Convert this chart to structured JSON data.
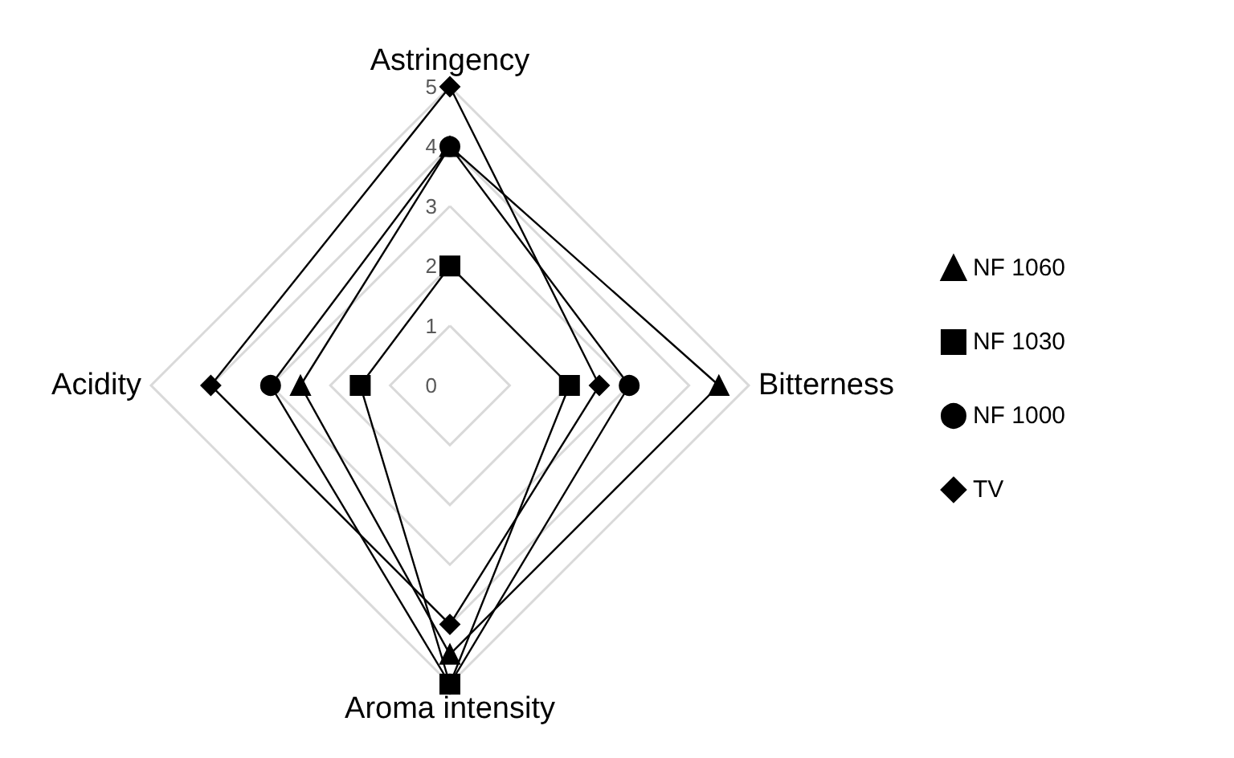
{
  "chart_data": {
    "type": "radar",
    "categories": [
      "Astringency",
      "Bitterness",
      "Aroma intensity",
      "Acidity"
    ],
    "ylim": [
      0,
      5
    ],
    "yticks": [
      0,
      1,
      2,
      3,
      4,
      5
    ],
    "grid": true,
    "legend": "right",
    "line_style": "solid",
    "series": [
      {
        "name": "NF 1060",
        "color": "#000000",
        "marker": "triangle",
        "values": [
          4,
          4.5,
          4.5,
          2.5
        ]
      },
      {
        "name": "NF 1030",
        "color": "#000000",
        "marker": "square",
        "values": [
          2,
          2,
          5,
          1.5
        ]
      },
      {
        "name": "NF 1000",
        "color": "#000000",
        "marker": "circle",
        "values": [
          4,
          3,
          5,
          3
        ]
      },
      {
        "name": "TV",
        "color": "#000000",
        "marker": "diamond",
        "values": [
          5,
          2.5,
          4,
          4
        ]
      }
    ]
  }
}
